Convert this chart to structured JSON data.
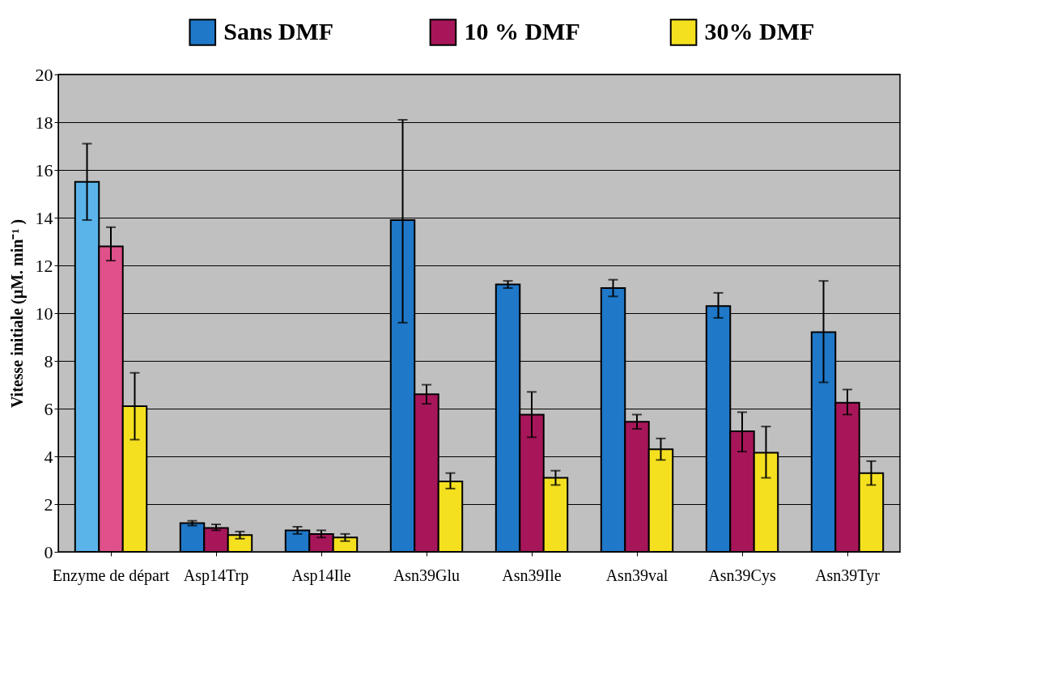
{
  "chart_data": {
    "type": "bar",
    "ylabel": "Vitesse initiale (µM. min⁻¹ )",
    "categories": [
      "Enzyme de départ",
      "Asp14Trp",
      "Asp14Ile",
      "Asn39Glu",
      "Asn39Ile",
      "Asn39val",
      "Asn39Cys",
      "Asn39Tyr"
    ],
    "series": [
      {
        "name": "Sans DMF",
        "color": "#1f78c8",
        "colors": [
          "#5ab4ea",
          "#1f78c8",
          "#1f78c8",
          "#1f78c8",
          "#1f78c8",
          "#1f78c8",
          "#1f78c8",
          "#1f78c8"
        ],
        "values": [
          15.5,
          1.2,
          0.9,
          13.9,
          11.2,
          11.05,
          10.3,
          9.2
        ],
        "errors": [
          [
            13.9,
            17.1
          ],
          [
            1.1,
            1.3
          ],
          [
            0.75,
            1.05
          ],
          [
            9.6,
            18.1
          ],
          [
            11.05,
            11.35
          ],
          [
            10.7,
            11.4
          ],
          [
            9.8,
            10.85
          ],
          [
            7.1,
            11.35
          ]
        ]
      },
      {
        "name": "10 % DMF",
        "color": "#a8165a",
        "colors": [
          "#e0508a",
          "#a8165a",
          "#a8165a",
          "#a8165a",
          "#a8165a",
          "#a8165a",
          "#a8165a",
          "#a8165a"
        ],
        "values": [
          12.8,
          1.0,
          0.75,
          6.6,
          5.75,
          5.45,
          5.05,
          6.25
        ],
        "errors": [
          [
            12.2,
            13.6
          ],
          [
            0.9,
            1.15
          ],
          [
            0.6,
            0.9
          ],
          [
            6.2,
            7.0
          ],
          [
            4.8,
            6.7
          ],
          [
            5.15,
            5.75
          ],
          [
            4.2,
            5.85
          ],
          [
            5.75,
            6.8
          ]
        ]
      },
      {
        "name": "30% DMF",
        "color": "#f5e020",
        "colors": [
          "#f5e020",
          "#f5e020",
          "#f5e020",
          "#f5e020",
          "#f5e020",
          "#f5e020",
          "#f5e020",
          "#f5e020"
        ],
        "values": [
          6.1,
          0.7,
          0.6,
          2.95,
          3.1,
          4.3,
          4.15,
          3.3
        ],
        "errors": [
          [
            4.7,
            7.5
          ],
          [
            0.55,
            0.85
          ],
          [
            0.45,
            0.75
          ],
          [
            2.65,
            3.3
          ],
          [
            2.8,
            3.4
          ],
          [
            3.85,
            4.75
          ],
          [
            3.1,
            5.25
          ],
          [
            2.8,
            3.8
          ]
        ]
      }
    ],
    "ylim": [
      0,
      20
    ],
    "yticks": [
      0,
      2,
      4,
      6,
      8,
      10,
      12,
      14,
      16,
      18,
      20
    ],
    "grid": "y",
    "legend": "top"
  }
}
